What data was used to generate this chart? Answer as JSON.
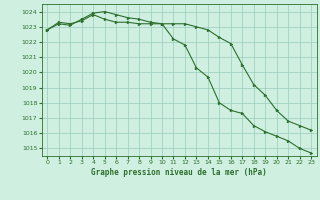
{
  "title": "Graphe pression niveau de la mer (hPa)",
  "background_color": "#cff0e0",
  "grid_color": "#99ccbb",
  "line_color": "#2d6e2d",
  "marker_color": "#2d6e2d",
  "xlim": [
    -0.5,
    23.5
  ],
  "ylim": [
    1014.5,
    1024.5
  ],
  "yticks": [
    1015,
    1016,
    1017,
    1018,
    1019,
    1020,
    1021,
    1022,
    1023,
    1024
  ],
  "xticks": [
    0,
    1,
    2,
    3,
    4,
    5,
    6,
    7,
    8,
    9,
    10,
    11,
    12,
    13,
    14,
    15,
    16,
    17,
    18,
    19,
    20,
    21,
    22,
    23
  ],
  "series1_x": [
    0,
    1,
    2,
    3,
    4,
    5,
    6,
    7,
    8,
    9,
    10,
    11,
    12,
    13,
    14,
    15,
    16,
    17,
    18,
    19,
    20,
    21,
    22,
    23
  ],
  "series1_y": [
    1022.8,
    1023.3,
    1023.2,
    1023.4,
    1023.8,
    1023.5,
    1023.3,
    1023.3,
    1023.2,
    1023.2,
    1023.2,
    1023.2,
    1023.2,
    1023.0,
    1022.8,
    1022.3,
    1021.9,
    1020.5,
    1019.2,
    1018.5,
    1017.5,
    1016.8,
    1016.5,
    1016.2
  ],
  "series2_x": [
    0,
    1,
    2,
    3,
    4,
    5,
    6,
    7,
    8,
    9,
    10,
    11,
    12,
    13,
    14,
    15,
    16,
    17,
    18,
    19,
    20,
    21,
    22,
    23
  ],
  "series2_y": [
    1022.8,
    1023.2,
    1023.1,
    1023.5,
    1023.9,
    1024.0,
    1023.8,
    1023.6,
    1023.5,
    1023.3,
    1023.2,
    1022.2,
    1021.8,
    1020.3,
    1019.7,
    1018.0,
    1017.5,
    1017.3,
    1016.5,
    1016.1,
    1015.8,
    1015.5,
    1015.0,
    1014.7
  ]
}
